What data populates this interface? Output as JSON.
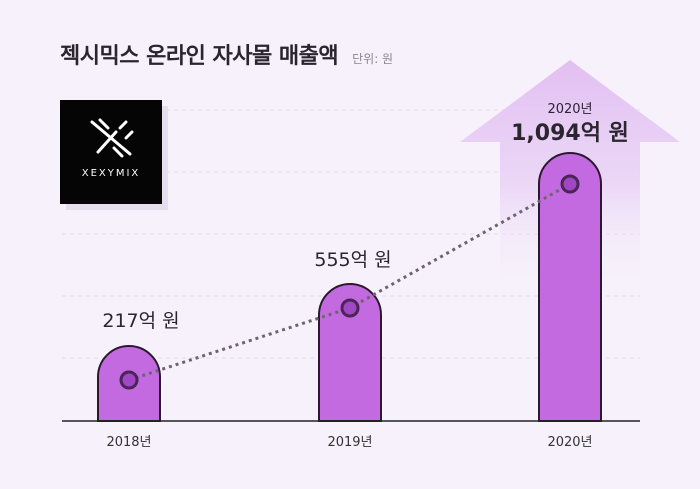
{
  "header": {
    "title": "젝시믹스 온라인 자사몰 매출액",
    "unit": "단위: 원"
  },
  "logo": {
    "text": "XEXYMIX"
  },
  "colors": {
    "bar": "#c46ae0",
    "bar_stroke": "#2a1a2e",
    "dot_fill": "#a047c6",
    "dot_stroke": "#4a2556",
    "trend": "#6d6472",
    "arrow": "#e5c6f2",
    "grid": "#e2dae9",
    "axis": "#222222"
  },
  "chart_data": {
    "type": "bar",
    "categories": [
      "2018년",
      "2019년",
      "2020년"
    ],
    "values": [
      217,
      555,
      1094
    ],
    "value_labels": [
      "217억 원",
      "555억 원",
      "1,094억 원"
    ],
    "highlight": {
      "year_label": "2020년",
      "value_label": "1,094억 원"
    },
    "trend_line": true,
    "grid": true
  }
}
